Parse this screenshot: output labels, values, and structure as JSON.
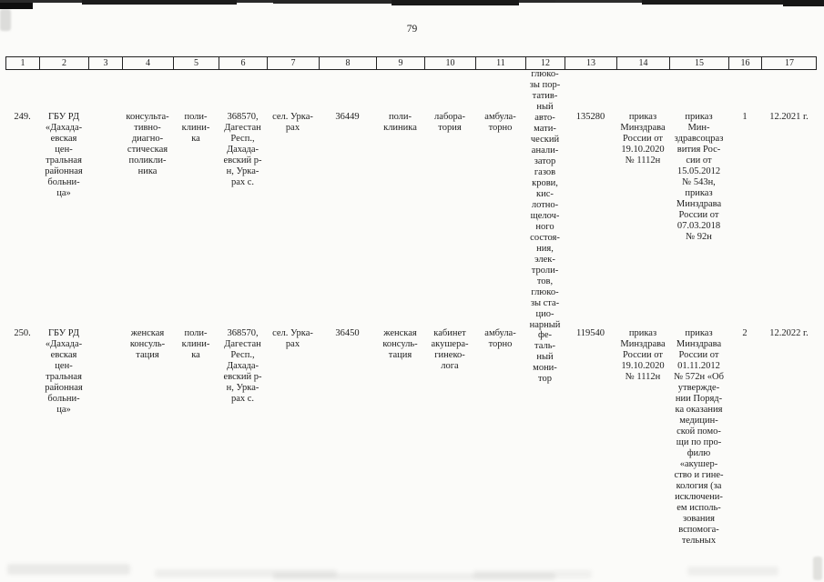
{
  "page": {
    "number": "79"
  },
  "table": {
    "header": [
      "1",
      "2",
      "3",
      "4",
      "5",
      "6",
      "7",
      "8",
      "9",
      "10",
      "11",
      "12",
      "13",
      "14",
      "15",
      "16",
      "17"
    ],
    "rows": [
      {
        "cells": [
          "249.",
          "ГБУ РД\n«Дахада-\nевская\nцен-\nтральная\nрайонная\nбольни-\nца»",
          "",
          "консульта-\nтивно-\nдиагно-\nстическая\nполикли-\nника",
          "поли-\nклини-\nка",
          "368570,\nДагестан\nРесп.,\nДахада-\nевский р-\nн, Урка-\nрах с.",
          "сел. Урка-\nрах",
          "36449",
          "поли-\nклиника",
          "лабора-\nтория",
          "амбула-\nторно",
          "глюко-\nзы пор-\nтатив-\nный\nавто-\nмати-\nческий\nанали-\nзатор\nгазов\nкрови,\nкис-\nлотно-\nщелоч-\nного\nсостоя-\nния,\nэлек-\nтроли-\nтов,\nглюко-\nзы ста-\nцио-\nнарный",
          "135280",
          "приказ\nМинздрава\nРоссии от\n19.10.2020\n№ 1112н",
          "приказ\nМин-\nздравсоцраз\nвития Рос-\nсии от\n15.05.2012\n№ 543н,\nприказ\nМинздрава\nРоссии от\n07.03.2018\n№ 92н",
          "1",
          "12.2021 г."
        ]
      },
      {
        "cells": [
          "250.",
          "ГБУ РД\n«Дахада-\nевская\nцен-\nтральная\nрайонная\nбольни-\nца»",
          "",
          "женская\nконсуль-\nтация",
          "поли-\nклини-\nка",
          "368570,\nДагестан\nРесп.,\nДахада-\nевский р-\nн, Урка-\nрах с.",
          "сел. Урка-\nрах",
          "36450",
          "женская\nконсуль-\nтация",
          "кабинет\nакушера-\nгинеко-\nлога",
          "амбула-\nторно",
          "фе-\nталь-\nный\nмони-\nтор",
          "119540",
          "приказ\nМинздрава\nРоссии от\n19.10.2020\n№ 1112н",
          "приказ\nМинздрава\nРоссии от\n01.11.2012\n№ 572н «Об\nутвержде-\nнии Поряд-\nка оказания\nмедицин-\nской помо-\nщи по про-\nфилю\n«акушер-\nство и гине-\nкология (за\nисключени-\nем исполь-\nзования\nвспомога-\nтельных",
          "2",
          "12.2022 г."
        ]
      }
    ]
  }
}
